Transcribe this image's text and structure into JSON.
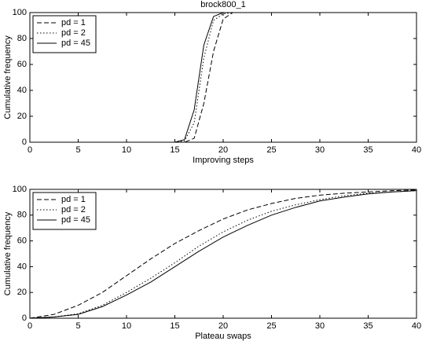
{
  "chart_data": [
    {
      "type": "line",
      "title": "brock800_1",
      "xlabel": "Improving steps",
      "ylabel": "Cumulative frequency",
      "x": [
        0,
        15,
        16,
        17,
        18,
        19,
        20,
        21,
        40
      ],
      "series": [
        {
          "name": "pd = 1",
          "color": "#000000",
          "style": "dashed",
          "values": [
            0,
            0,
            0,
            3,
            30,
            70,
            95,
            100,
            100
          ]
        },
        {
          "name": "pd = 2",
          "color": "#000000",
          "style": "dotted",
          "values": [
            0,
            0,
            1,
            15,
            65,
            94,
            99,
            100,
            100
          ]
        },
        {
          "name": "pd = 45",
          "color": "#000000",
          "style": "solid",
          "values": [
            0,
            0,
            2,
            25,
            75,
            97,
            100,
            100,
            100
          ]
        }
      ],
      "xlim": [
        0,
        40
      ],
      "xticks": [
        0,
        5,
        10,
        15,
        20,
        25,
        30,
        35,
        40
      ],
      "ylim": [
        0,
        100
      ],
      "yticks": [
        0,
        20,
        40,
        60,
        80,
        100
      ],
      "grid": false,
      "legend": "upper-left"
    },
    {
      "type": "line",
      "xlabel": "Plateau swaps",
      "ylabel": "Cumulative frequency",
      "x": [
        0,
        2.5,
        5,
        7.5,
        10,
        12.5,
        15,
        17.5,
        20,
        22.5,
        25,
        27.5,
        30,
        32.5,
        35,
        37.5,
        40
      ],
      "series": [
        {
          "name": "pd = 1",
          "color": "#000000",
          "style": "dashed",
          "values": [
            0,
            3,
            10,
            20,
            33,
            46,
            58,
            68,
            77,
            84,
            89,
            93,
            95.5,
            97,
            98,
            99,
            99.5
          ]
        },
        {
          "name": "pd = 2",
          "color": "#000000",
          "style": "dotted",
          "values": [
            0,
            1,
            3.5,
            10,
            20,
            31,
            43,
            56,
            67,
            76,
            83,
            88,
            92,
            95,
            97,
            98,
            99
          ]
        },
        {
          "name": "pd = 45",
          "color": "#000000",
          "style": "solid",
          "values": [
            0,
            1,
            3,
            9,
            18,
            28,
            40,
            52,
            63,
            72,
            80,
            86,
            91,
            94,
            96.5,
            98,
            99
          ]
        }
      ],
      "xlim": [
        0,
        40
      ],
      "xticks": [
        0,
        5,
        10,
        15,
        20,
        25,
        30,
        35,
        40
      ],
      "ylim": [
        0,
        100
      ],
      "yticks": [
        0,
        20,
        40,
        60,
        80,
        100
      ],
      "grid": false,
      "legend": "upper-left"
    }
  ]
}
